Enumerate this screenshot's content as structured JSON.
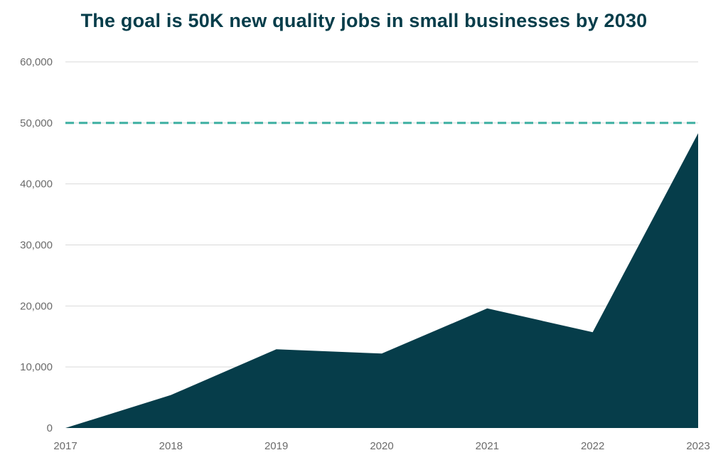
{
  "chart_data": {
    "type": "area",
    "title": "The goal is 50K new quality jobs in small businesses by 2030",
    "xlabel": "",
    "ylabel": "",
    "x": [
      "2017",
      "2018",
      "2019",
      "2020",
      "2021",
      "2022",
      "2023"
    ],
    "y_ticks": [
      "0",
      "10,000",
      "20,000",
      "30,000",
      "40,000",
      "50,000",
      "60,000"
    ],
    "ylim": [
      0,
      60000
    ],
    "series": [
      {
        "values": [
          0,
          5400,
          12900,
          12200,
          19600,
          15700,
          48300
        ],
        "color": "#063d4a"
      }
    ],
    "reference_line": {
      "value": 50000,
      "style": "dashed",
      "color": "#3aaea0"
    },
    "grid": true,
    "gridline_color": "#d9d9d9"
  }
}
